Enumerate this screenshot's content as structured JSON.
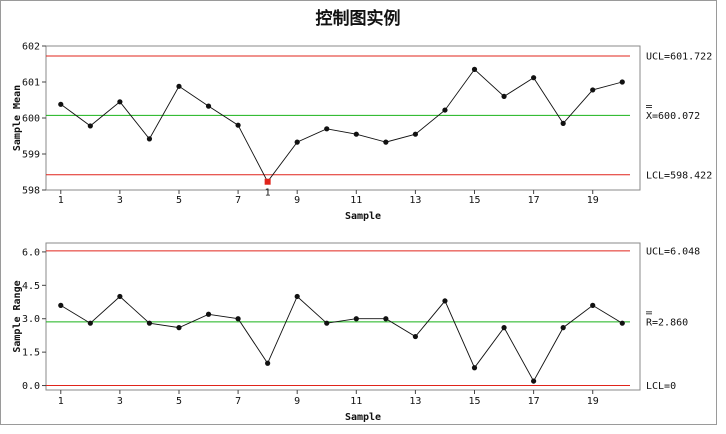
{
  "title": "控制图实例",
  "chart_data": [
    {
      "type": "line",
      "name": "xbar-chart",
      "xlabel": "Sample",
      "ylabel": "Sample Mean",
      "x": [
        1,
        2,
        3,
        4,
        5,
        6,
        7,
        8,
        9,
        10,
        11,
        12,
        13,
        14,
        15,
        16,
        17,
        18,
        19,
        20
      ],
      "values": [
        600.38,
        599.78,
        600.45,
        599.42,
        600.88,
        600.33,
        599.8,
        598.23,
        599.33,
        599.7,
        599.55,
        599.33,
        599.55,
        600.22,
        601.35,
        600.6,
        601.12,
        599.85,
        600.78,
        601.0
      ],
      "flagged": [
        8
      ],
      "ylim": [
        598,
        602
      ],
      "yticks": [
        598,
        599,
        600,
        601,
        602
      ],
      "xticks": [
        1,
        3,
        5,
        7,
        9,
        11,
        13,
        15,
        17,
        19
      ],
      "ucl": 601.722,
      "cl": 600.072,
      "lcl": 598.422,
      "ucl_label": "UCL=601.722",
      "cl_label": "X=600.072",
      "lcl_label": "LCL=598.422",
      "flag_label": "1"
    },
    {
      "type": "line",
      "name": "range-chart",
      "xlabel": "Sample",
      "ylabel": "Sample Range",
      "x": [
        1,
        2,
        3,
        4,
        5,
        6,
        7,
        8,
        9,
        10,
        11,
        12,
        13,
        14,
        15,
        16,
        17,
        18,
        19,
        20
      ],
      "values": [
        3.6,
        2.8,
        4.0,
        2.8,
        2.6,
        3.2,
        3.0,
        1.0,
        4.0,
        2.8,
        3.0,
        3.0,
        2.2,
        3.8,
        0.8,
        2.6,
        0.2,
        2.6,
        3.6,
        2.8
      ],
      "flagged": [],
      "ylim": [
        -0.2,
        6.4
      ],
      "yticks": [
        0.0,
        1.5,
        3.0,
        4.5,
        6.0
      ],
      "ytick_labels": [
        "0.0",
        "1.5",
        "3.0",
        "4.5",
        "6.0"
      ],
      "xticks": [
        1,
        3,
        5,
        7,
        9,
        11,
        13,
        15,
        17,
        19
      ],
      "ucl": 6.048,
      "cl": 2.86,
      "lcl": 0,
      "ucl_label": "UCL=6.048",
      "cl_label": "R=2.860",
      "lcl_label": "LCL=0"
    }
  ],
  "colors": {
    "limit": "#e0241b",
    "center": "#19b219",
    "series": "#111111",
    "flag": "#e0241b"
  }
}
